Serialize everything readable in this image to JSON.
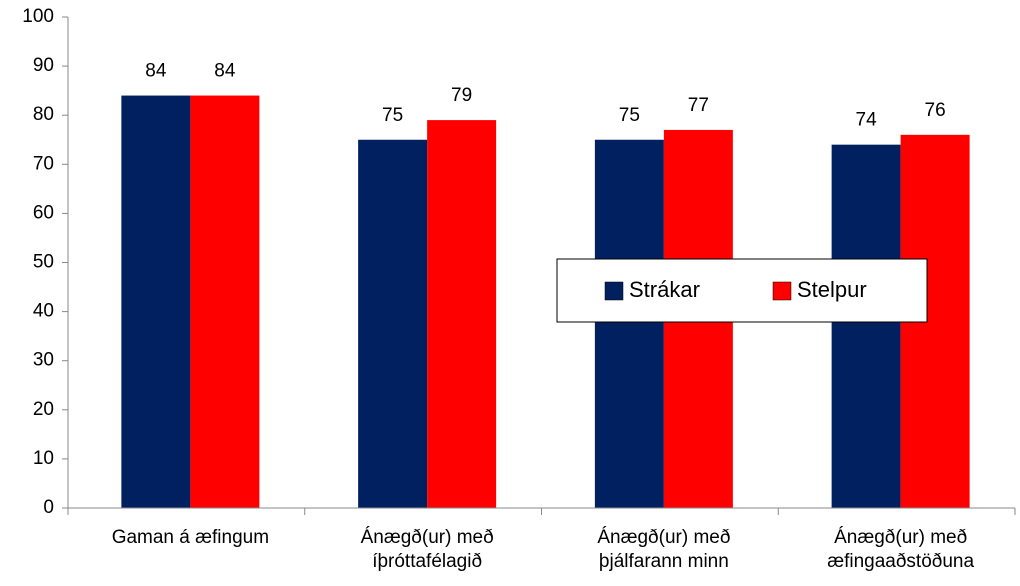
{
  "chart_data": {
    "type": "bar",
    "categories": [
      "Gaman á æfingum",
      "Ánægð(ur) með íþróttafélagið",
      "Ánægð(ur) með þjálfarann minn",
      "Ánægð(ur) með æfingaaðstöðuna"
    ],
    "series": [
      {
        "name": "Strákar",
        "color": "#002060",
        "values": [
          84,
          75,
          75,
          74
        ]
      },
      {
        "name": "Stelpur",
        "color": "#ff0000",
        "values": [
          84,
          79,
          77,
          76
        ]
      }
    ],
    "ylim": [
      0,
      100
    ],
    "yticks": [
      0,
      10,
      20,
      30,
      40,
      50,
      60,
      70,
      80,
      90,
      100
    ],
    "grid": false,
    "legend": "center"
  }
}
